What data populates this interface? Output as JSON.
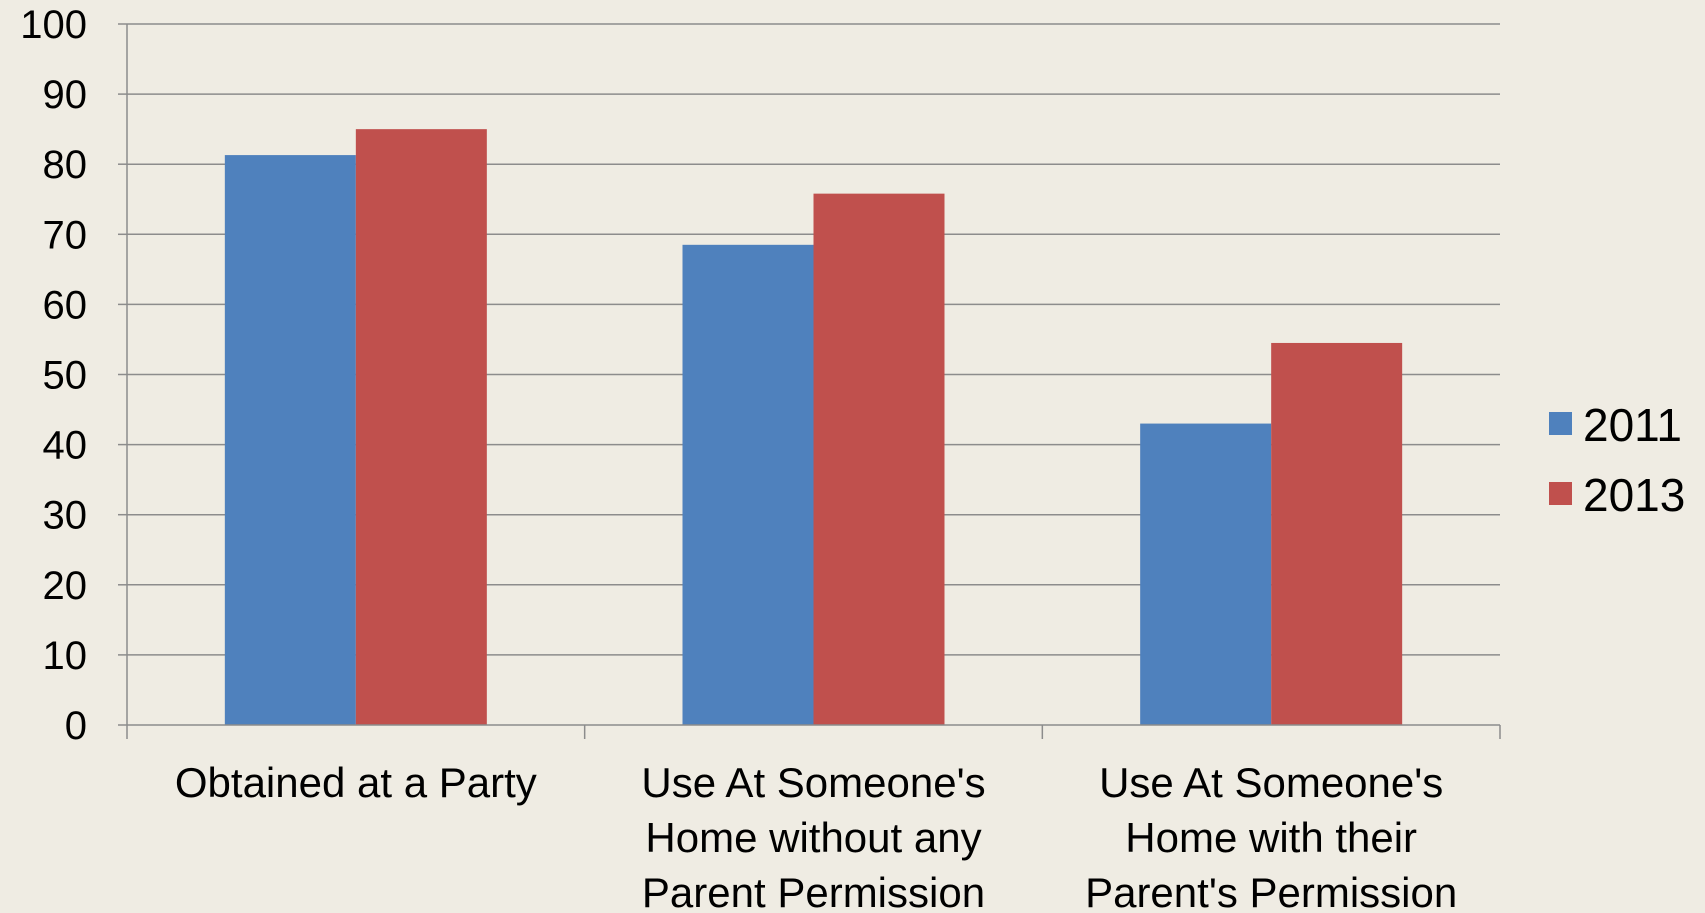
{
  "chart_data": {
    "type": "bar",
    "title": "",
    "xlabel": "",
    "ylabel": "",
    "ylim": [
      0,
      100
    ],
    "yticks": [
      0,
      10,
      20,
      30,
      40,
      50,
      60,
      70,
      80,
      90,
      100
    ],
    "categories": [
      [
        "Obtained at a Party"
      ],
      [
        "Use At Someone's",
        "Home without any",
        "Parent Permission"
      ],
      [
        "Use At Someone's",
        "Home with their",
        "Parent's Permission"
      ]
    ],
    "series": [
      {
        "name": "2011",
        "color": "#4f81bd",
        "values": [
          81.3,
          68.5,
          43
        ]
      },
      {
        "name": "2013",
        "color": "#c0504d",
        "values": [
          85,
          75.8,
          54.5
        ]
      }
    ],
    "grid": true,
    "legend_position": "right"
  }
}
